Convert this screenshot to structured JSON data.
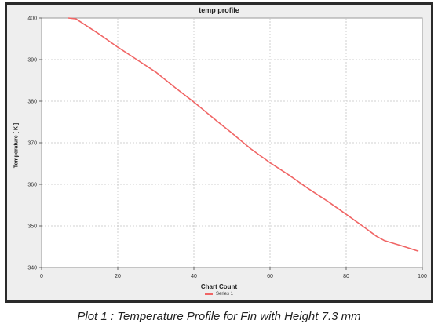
{
  "caption": "Plot 1 : Temperature Profile for Fin with Height 7.3 mm",
  "chart_data": {
    "type": "line",
    "title": "temp profile",
    "xlabel": "Chart Count",
    "ylabel": "Temperature [ K ]",
    "xlim": [
      0,
      100
    ],
    "ylim": [
      340,
      400
    ],
    "xticks": [
      0,
      20,
      40,
      60,
      80,
      100
    ],
    "yticks": [
      340,
      350,
      360,
      370,
      380,
      390,
      400
    ],
    "grid": true,
    "legend_position": "bottom",
    "series": [
      {
        "name": "Series 1",
        "color": "#f06565",
        "x": [
          7,
          9,
          10,
          15,
          20,
          25,
          30,
          35,
          40,
          45,
          50,
          55,
          60,
          65,
          70,
          75,
          80,
          85,
          88,
          90,
          95,
          99
        ],
        "y": [
          400,
          399.8,
          399.2,
          396.2,
          393,
          390,
          387,
          383.3,
          379.8,
          376,
          372.3,
          368.5,
          365.2,
          362.2,
          359,
          356,
          352.8,
          349.5,
          347.5,
          346.5,
          345.1,
          343.9
        ]
      }
    ]
  }
}
